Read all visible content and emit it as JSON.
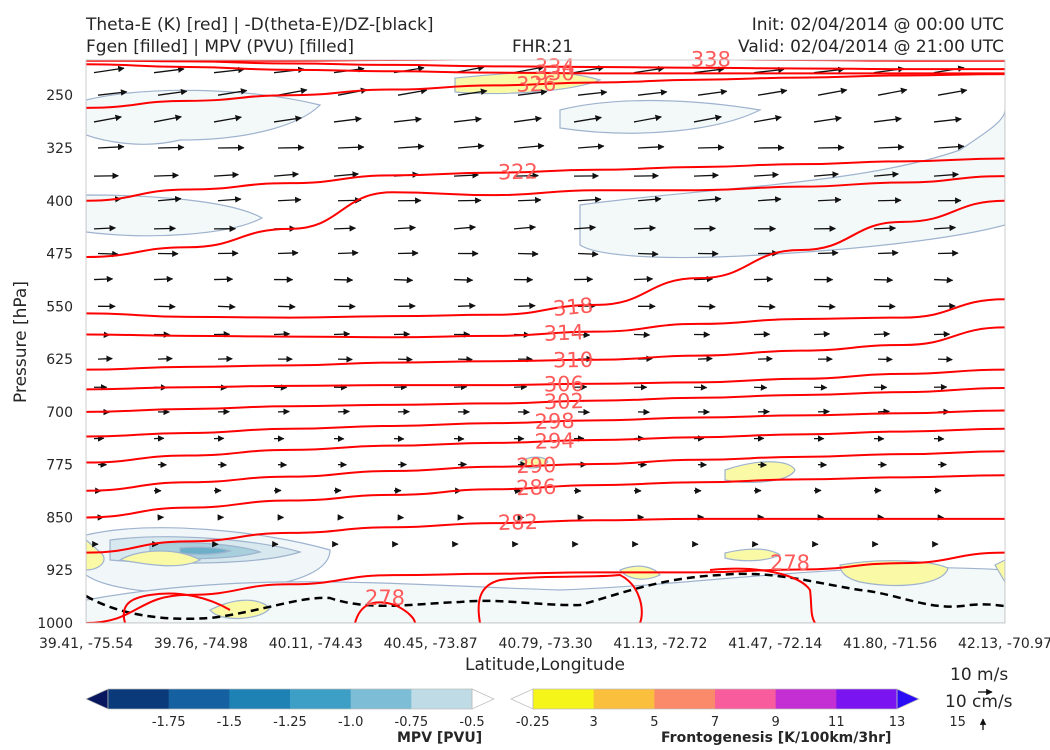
{
  "header": {
    "title_line1": "Theta-E (K) [red] | -D(theta-E)/DZ-[black]",
    "title_line2": "Fgen [filled] | MPV (PVU) [filled]",
    "fhr": "FHR:21",
    "init": "Init: 02/04/2014 @ 00:00 UTC",
    "valid": "Valid: 02/04/2014 @ 21:00 UTC"
  },
  "chart_data": {
    "type": "cross-section",
    "ylabel": "Pressure [hPa]",
    "xlabel": "Latitude,Longitude",
    "y_axis": {
      "scale": "pressure",
      "range": [
        1000,
        200
      ],
      "ticks": [
        250,
        325,
        400,
        475,
        550,
        625,
        700,
        775,
        850,
        925,
        1000
      ]
    },
    "x_axis": {
      "ticks": [
        "39.41, -75.54",
        "39.76, -74.98",
        "40.11, -74.43",
        "40.45, -73.87",
        "40.79, -73.30",
        "41.13, -72.72",
        "41.47, -72.14",
        "41.80, -71.56",
        "42.13, -70.97"
      ]
    },
    "theta_e_contours": [
      {
        "label": "334",
        "pressures": [
          200,
          202,
          205,
          207,
          209,
          210,
          211,
          212,
          213,
          213
        ]
      },
      {
        "label": "338",
        "pressures": [
          201,
          201,
          201,
          200,
          199,
          199,
          199,
          200,
          201,
          201
        ]
      },
      {
        "label": "330",
        "pressures": [
          206,
          210,
          214,
          216,
          218,
          219,
          219,
          219,
          219,
          219
        ]
      },
      {
        "label": "326",
        "pressures": [
          268,
          258,
          250,
          242,
          236,
          232,
          228,
          225,
          222,
          220
        ]
      },
      {
        "label": "322",
        "pressures": [
          400,
          384,
          375,
          364,
          360,
          356,
          352,
          348,
          344,
          340
        ]
      },
      {
        "label": "318",
        "pressures": [
          480,
          466,
          440,
          388,
          392,
          385,
          385,
          380,
          374,
          365
        ]
      },
      {
        "label": "318",
        "pressures": [
          560,
          565,
          566,
          564,
          562,
          548,
          510,
          470,
          430,
          400
        ]
      },
      {
        "label": "314",
        "pressures": [
          590,
          592,
          593,
          594,
          592,
          586,
          575,
          568,
          566,
          540
        ]
      },
      {
        "label": "310",
        "pressures": [
          640,
          636,
          634,
          630,
          628,
          626,
          620,
          613,
          605,
          580
        ]
      },
      {
        "label": "306",
        "pressures": [
          668,
          665,
          663,
          662,
          662,
          660,
          658,
          653,
          646,
          640
        ]
      },
      {
        "label": "302",
        "pressures": [
          700,
          696,
          692,
          690,
          688,
          684,
          680,
          676,
          672,
          666
        ]
      },
      {
        "label": "298",
        "pressures": [
          735,
          730,
          724,
          720,
          716,
          712,
          708,
          705,
          702,
          698
        ]
      },
      {
        "label": "294",
        "pressures": [
          772,
          762,
          754,
          748,
          744,
          740,
          736,
          732,
          728,
          724
        ]
      },
      {
        "label": "290",
        "pressures": [
          812,
          800,
          792,
          784,
          778,
          774,
          768,
          764,
          760,
          756
        ]
      },
      {
        "label": "286",
        "pressures": [
          850,
          836,
          826,
          818,
          810,
          804,
          800,
          796,
          793,
          790
        ]
      },
      {
        "label": "282",
        "pressures": [
          900,
          884,
          872,
          864,
          858,
          854,
          852,
          852,
          852,
          852
        ]
      },
      {
        "label": "278",
        "pressures": [
          1000,
          960,
          945,
          932,
          930,
          928,
          928,
          924,
          915,
          900
        ]
      }
    ],
    "wind_units": [
      "10 m/s",
      "10 cm/s"
    ],
    "colorbars": [
      {
        "label": "MPV [PVU]",
        "ticks": [
          "-1.75",
          "-1.5",
          "-1.25",
          "-1.0",
          "-0.75",
          "-0.5",
          "-0.25"
        ],
        "colors": [
          "#08185e",
          "#0b3a7a",
          "#1560a0",
          "#1e82b4",
          "#3e9fc6",
          "#7dbdd6",
          "#bfdce6",
          "#ffffff"
        ]
      },
      {
        "label": "Frontogenesis [K/100km/3hr]",
        "ticks": [
          "3",
          "5",
          "7",
          "9",
          "11",
          "13",
          "15"
        ],
        "colors": [
          "#ffffff",
          "#f5f51a",
          "#fbbf3e",
          "#fb8a6a",
          "#f85c9c",
          "#c42fd4",
          "#7a14f0",
          "#2a0cf5"
        ]
      }
    ]
  }
}
